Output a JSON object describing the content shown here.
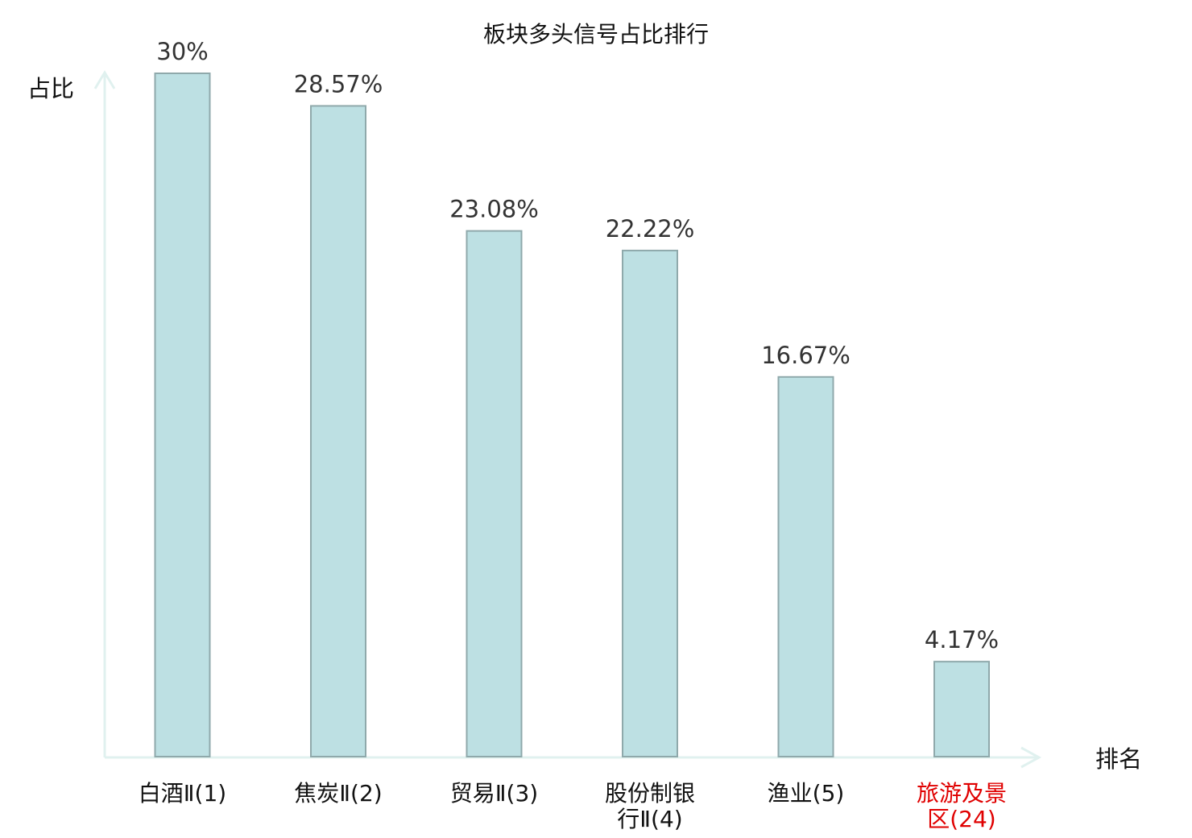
{
  "chart_data": {
    "type": "bar",
    "title": "板块多头信号占比排行",
    "ylabel": "占比",
    "xlabel": "排名",
    "ylim": [
      0,
      30
    ],
    "grid": false,
    "categories": [
      {
        "lines": [
          "白酒Ⅱ(1)"
        ],
        "highlight": false
      },
      {
        "lines": [
          "焦炭Ⅱ(2)"
        ],
        "highlight": false
      },
      {
        "lines": [
          "贸易Ⅱ(3)"
        ],
        "highlight": false
      },
      {
        "lines": [
          "股份制银",
          "行Ⅱ(4)"
        ],
        "highlight": false
      },
      {
        "lines": [
          "渔业(5)"
        ],
        "highlight": false
      },
      {
        "lines": [
          "旅游及景",
          "区(24)"
        ],
        "highlight": true
      }
    ],
    "values": [
      30,
      28.57,
      23.08,
      22.22,
      16.67,
      4.17
    ],
    "value_labels": [
      "30%",
      "28.57%",
      "23.08%",
      "22.22%",
      "16.67%",
      "4.17%"
    ],
    "colors": {
      "bar_fill": "#bde0e3",
      "bar_stroke": "#8fa9ab",
      "axis": "#e0f1ef",
      "label_text": "#111111",
      "value_text": "#333333",
      "highlight_text": "#e00000"
    }
  }
}
